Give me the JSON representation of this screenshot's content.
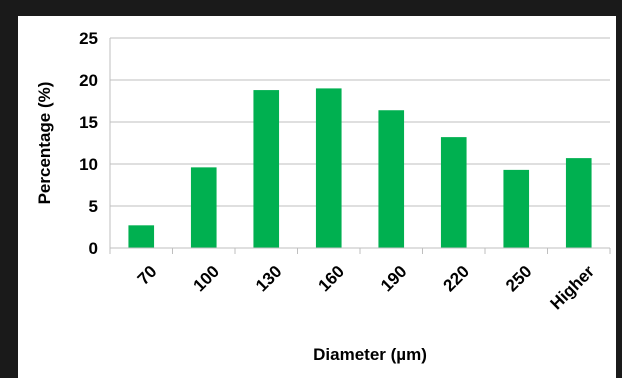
{
  "chart_data": {
    "type": "bar",
    "title": "",
    "xlabel": "Diameter (µm)",
    "ylabel": "Percentage (%)",
    "categories": [
      "70",
      "100",
      "130",
      "160",
      "190",
      "220",
      "250",
      "Higher"
    ],
    "values": [
      2.7,
      9.6,
      18.8,
      19.0,
      16.4,
      13.2,
      9.3,
      10.7
    ],
    "ylim": [
      0,
      25
    ],
    "yticks": [
      "0",
      "5",
      "10",
      "15",
      "20",
      "25"
    ],
    "grid": true,
    "legend": "none",
    "bar_color": "#00b050",
    "grid_color": "#bfbfbf"
  }
}
